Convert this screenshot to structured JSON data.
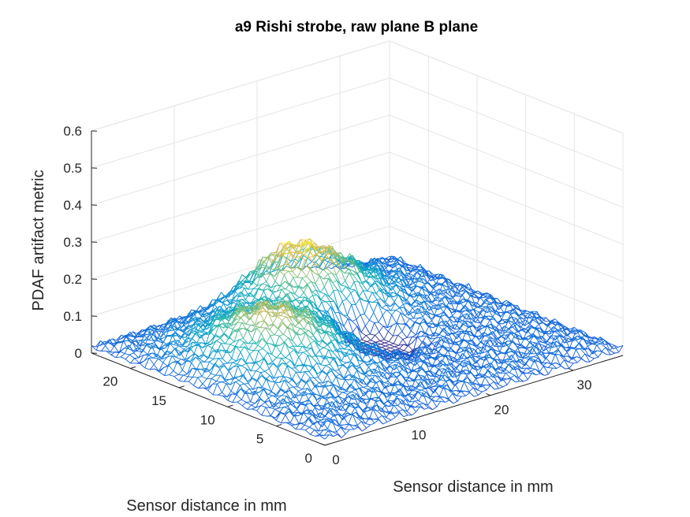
{
  "chart_data": {
    "type": "surface-mesh",
    "title": "a9 Rishi strobe, raw plane B plane",
    "xlabel": "Sensor distance in mm",
    "ylabel": "Sensor distance in mm",
    "zlabel": "PDAF artifact metric",
    "xlim": [
      0,
      36
    ],
    "ylim": [
      0,
      24
    ],
    "zlim": [
      0,
      0.6
    ],
    "x_ticks": [
      "0",
      "10",
      "20",
      "30"
    ],
    "y_ticks": [
      "0",
      "5",
      "10",
      "15",
      "20"
    ],
    "z_ticks": [
      "0",
      "0.1",
      "0.2",
      "0.3",
      "0.4",
      "0.5",
      "0.6"
    ],
    "grid": true,
    "colormap": "parula",
    "surface": {
      "baseline": 0.03,
      "ridges": [
        {
          "x": 10,
          "y": 14,
          "peak": 0.15
        },
        {
          "x": 22,
          "y": 21,
          "peak": 0.17
        }
      ],
      "dip": {
        "x": 21,
        "y": 13,
        "min": -0.01
      }
    }
  }
}
